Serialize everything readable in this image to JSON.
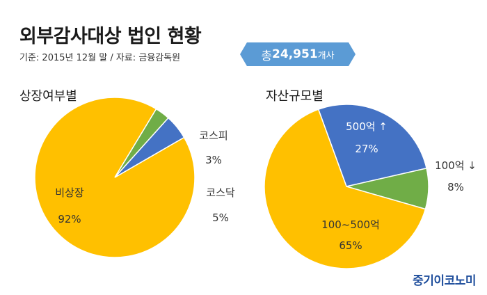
{
  "header": {
    "title": "외부감사대상 법인 현황",
    "subtitle": "기준: 2015년 12월 말 / 자료: 금융감독원",
    "total_prefix": "총 ",
    "total_count": "24,951",
    "total_unit": "개사"
  },
  "colors": {
    "yellow": "#ffc000",
    "green": "#70ad47",
    "blue": "#4472c4",
    "badge": "#5b9bd5",
    "logo": "#1f4e9c"
  },
  "chart_data": [
    {
      "type": "pie",
      "title": "상장여부별",
      "slices": [
        {
          "label": "비상장",
          "value": 92,
          "display": "92%",
          "color": "#ffc000"
        },
        {
          "label": "코스피",
          "value": 3,
          "display": "3%",
          "color": "#70ad47"
        },
        {
          "label": "코스닥",
          "value": 5,
          "display": "5%",
          "color": "#4472c4"
        }
      ]
    },
    {
      "type": "pie",
      "title": "자산규모별",
      "slices": [
        {
          "label": "500억 ↑",
          "value": 27,
          "display": "27%",
          "color": "#4472c4"
        },
        {
          "label": "100억 ↓",
          "value": 8,
          "display": "8%",
          "color": "#70ad47"
        },
        {
          "label": "100~500억",
          "value": 65,
          "display": "65%",
          "color": "#ffc000"
        }
      ]
    }
  ],
  "footer": {
    "logo_text": "중기이코노미"
  }
}
